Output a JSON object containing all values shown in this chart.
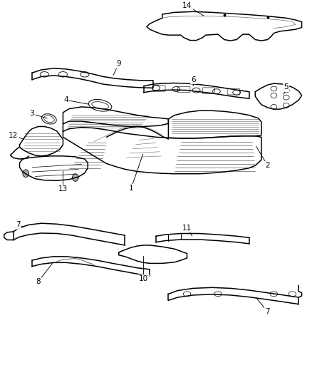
{
  "background_color": "#ffffff",
  "line_color": "#000000",
  "label_color": "#000000",
  "fig_width": 4.38,
  "fig_height": 5.33,
  "dpi": 100
}
